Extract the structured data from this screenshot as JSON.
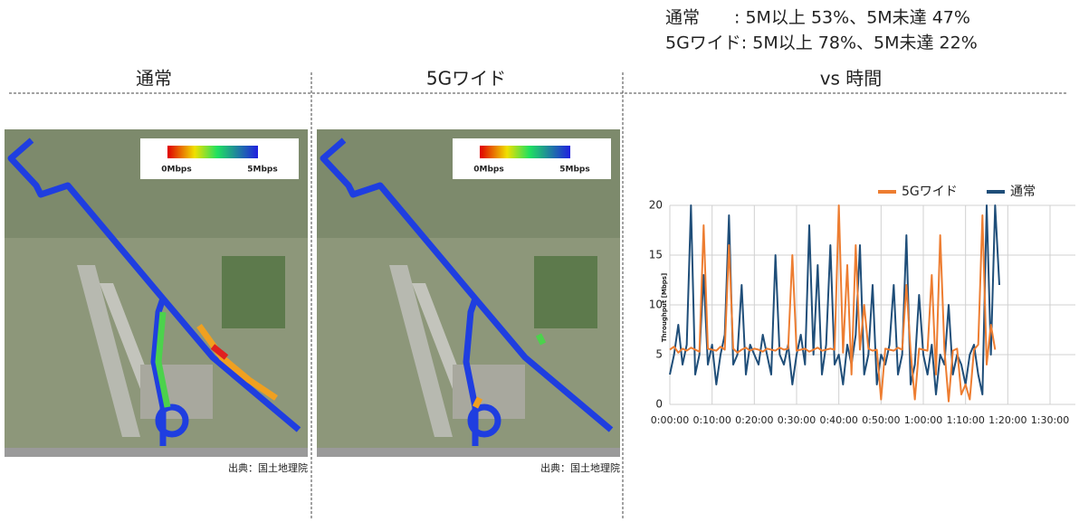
{
  "summary": [
    "通常　　: 5M以上 53%、5M未達 47%",
    "5Gワイド: 5M以上 78%、5M未達 22%"
  ],
  "panels": [
    {
      "title": "通常",
      "legend_min": "0Mbps",
      "legend_max": "5Mbps",
      "source": "出典：国土地理院"
    },
    {
      "title": "5Gワイド",
      "legend_min": "0Mbps",
      "legend_max": "5Mbps",
      "source": "出典：国土地理院"
    }
  ],
  "chart_data": {
    "type": "line",
    "title": "vs 時間",
    "y_label": "Throughput [Mbps]",
    "x": [
      0,
      1,
      2,
      3,
      4,
      5,
      6,
      7,
      8,
      9,
      10,
      11,
      12,
      13,
      14,
      15,
      16,
      17,
      18,
      19,
      20,
      21,
      22,
      23,
      24,
      25,
      26,
      27,
      28,
      29,
      30,
      31,
      32,
      33,
      34,
      35,
      36,
      37,
      38,
      39,
      40,
      41,
      42,
      43,
      44,
      45,
      46,
      47,
      48,
      49,
      50,
      51,
      52,
      53,
      54,
      55,
      56,
      57,
      58,
      59,
      60,
      61,
      62,
      63,
      64,
      65,
      66,
      67,
      68,
      69,
      70,
      71,
      72,
      73,
      74,
      75,
      76,
      77,
      78
    ],
    "series": [
      {
        "name": "5Gワイド",
        "color": "#ed7d31",
        "values": [
          5.5,
          5.8,
          5.2,
          5.6,
          5.4,
          5.7,
          5.5,
          5.3,
          18,
          5.6,
          5.5,
          5.4,
          5.8,
          5.5,
          16,
          5.6,
          5.2,
          5.5,
          5.7,
          5.4,
          5.6,
          5.5,
          5.3,
          5.6,
          5.5,
          5.4,
          5.7,
          5.5,
          5.6,
          15,
          5.4,
          5.5,
          5.6,
          5.3,
          5.5,
          5.7,
          5.4,
          5.5,
          5.6,
          5.5,
          20,
          5.2,
          14,
          3,
          16,
          5.5,
          10,
          5.6,
          5.4,
          5.5,
          0.5,
          5.6,
          5.5,
          5.4,
          5.7,
          5.5,
          12,
          5.3,
          0.5,
          5.6,
          5.5,
          5.4,
          13,
          3,
          17,
          5.5,
          0.3,
          5.4,
          5.6,
          1,
          2,
          0.5,
          5.5,
          6,
          19,
          4,
          8,
          5.5,
          null
        ]
      },
      {
        "name": "通常",
        "color": "#1f4e79",
        "values": [
          3,
          5,
          8,
          4,
          6,
          20,
          3,
          5,
          13,
          4,
          6,
          2,
          5,
          7,
          19,
          4,
          5,
          12,
          3,
          6,
          5,
          4,
          7,
          5,
          3,
          15,
          5,
          4,
          6,
          2,
          5,
          7,
          4,
          18,
          5,
          14,
          3,
          6,
          16,
          4,
          5,
          2,
          6,
          4,
          7,
          16,
          3,
          5,
          12,
          2,
          5,
          4,
          6,
          12,
          3,
          5,
          17,
          2,
          4,
          11,
          5,
          3,
          6,
          1,
          5,
          4,
          10,
          3,
          5,
          4,
          2,
          5,
          6,
          3,
          1,
          20,
          5,
          20,
          12
        ]
      }
    ],
    "xlim": [
      0,
      96
    ],
    "ylim": [
      0,
      20
    ],
    "xticks": [
      {
        "value": 0,
        "label": "0:00:00"
      },
      {
        "value": 10,
        "label": "0:10:00"
      },
      {
        "value": 20,
        "label": "0:20:00"
      },
      {
        "value": 30,
        "label": "0:30:00"
      },
      {
        "value": 40,
        "label": "0:40:00"
      },
      {
        "value": 50,
        "label": "0:50:00"
      },
      {
        "value": 60,
        "label": "1:00:00"
      },
      {
        "value": 70,
        "label": "1:10:00"
      },
      {
        "value": 80,
        "label": "1:20:00"
      },
      {
        "value": 90,
        "label": "1:30:00"
      }
    ],
    "yticks": [
      0,
      5,
      10,
      15,
      20
    ],
    "grid": true,
    "legend": "top-right"
  }
}
